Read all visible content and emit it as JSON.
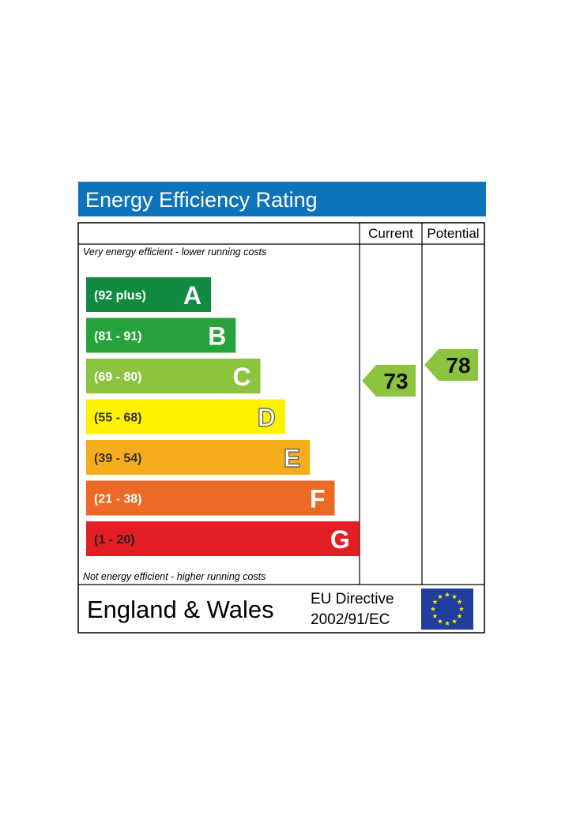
{
  "title": "Energy Efficiency Rating",
  "columns": {
    "current": "Current",
    "potential": "Potential"
  },
  "top_caption": "Very energy efficient - lower running costs",
  "bottom_caption": "Not energy efficient - higher running costs",
  "footer": {
    "region": "England & Wales",
    "directive_line1": "EU Directive",
    "directive_line2": "2002/91/EC",
    "flag_icon": "eu-flag-icon"
  },
  "colors": {
    "title_bar": "#0d74bb",
    "current_arrow": "#8cc43f",
    "potential_arrow": "#8cc43f",
    "eu_flag": "#1f3e9e",
    "eu_stars": "#ffe600"
  },
  "chart_data": {
    "type": "bar",
    "categories": [
      "A",
      "B",
      "C",
      "D",
      "E",
      "F",
      "G"
    ],
    "ranges": [
      "(92 plus)",
      "(81 - 91)",
      "(69 - 80)",
      "(55 - 68)",
      "(39 - 54)",
      "(21 - 38)",
      "(1 - 20)"
    ],
    "band_colors": [
      "#108a41",
      "#26a33d",
      "#8cc43f",
      "#fff200",
      "#f6ad1c",
      "#ec6a25",
      "#e31e24"
    ],
    "series": [
      {
        "name": "Current",
        "value": 73,
        "band": "C"
      },
      {
        "name": "Potential",
        "value": 78,
        "band": "C"
      }
    ]
  }
}
